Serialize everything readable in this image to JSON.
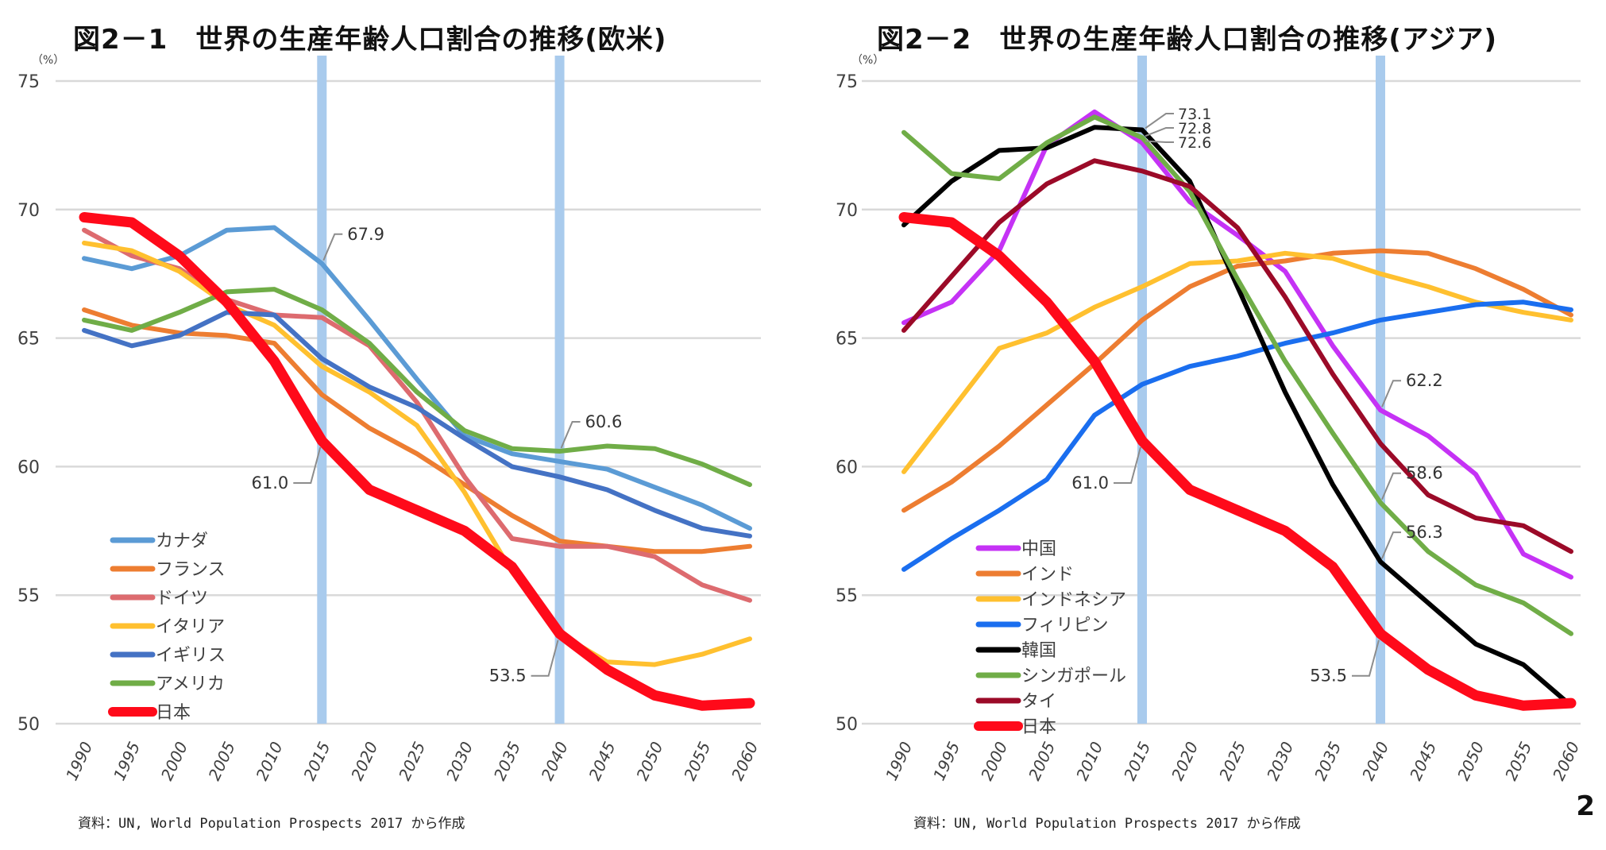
{
  "page_number": "2",
  "colors": {
    "grid": "#d9d9d9",
    "highlight_band": "#a9cbed",
    "label_text": "#404040",
    "leader_line": "#8c8c8c"
  },
  "chart_data": [
    {
      "id": "west",
      "type": "line",
      "title": "図2－1　世界の生産年齢人口割合の推移(欧米)",
      "ylabel": "（%）",
      "xlabel": "",
      "source": "資料：UN, World Population Prospects 2017 から作成",
      "x": [
        1990,
        1995,
        2000,
        2005,
        2010,
        2015,
        2020,
        2025,
        2030,
        2035,
        2040,
        2045,
        2050,
        2055,
        2060
      ],
      "x_tick_labels": [
        "1990",
        "1995",
        "2000",
        "2005",
        "2010",
        "2015",
        "2020",
        "2025",
        "2030",
        "2035",
        "2040",
        "2045",
        "2050",
        "2055",
        "2060"
      ],
      "ylim": [
        50,
        75
      ],
      "y_ticks": [
        50,
        55,
        60,
        65,
        70,
        75
      ],
      "grid": "horizontal",
      "highlight_years": [
        2015,
        2040
      ],
      "legend_position": "bottom-left",
      "series": [
        {
          "name": "カナダ",
          "color": "#5b9bd5",
          "width": "normal",
          "values": [
            68.1,
            67.7,
            68.2,
            69.2,
            69.3,
            67.9,
            65.7,
            63.4,
            61.2,
            60.5,
            60.2,
            59.9,
            59.2,
            58.5,
            57.6
          ]
        },
        {
          "name": "フランス",
          "color": "#ed7d31",
          "width": "normal",
          "values": [
            66.1,
            65.5,
            65.2,
            65.1,
            64.8,
            62.8,
            61.5,
            60.5,
            59.3,
            58.1,
            57.1,
            56.9,
            56.7,
            56.7,
            56.9
          ]
        },
        {
          "name": "ドイツ",
          "color": "#dd6b6f",
          "width": "normal",
          "values": [
            69.2,
            68.2,
            67.7,
            66.5,
            65.9,
            65.8,
            64.7,
            62.5,
            59.6,
            57.2,
            56.9,
            56.9,
            56.5,
            55.4,
            54.8
          ]
        },
        {
          "name": "イタリア",
          "color": "#ffc02f",
          "width": "normal",
          "values": [
            68.7,
            68.4,
            67.6,
            66.3,
            65.5,
            63.9,
            62.9,
            61.6,
            59.0,
            55.9,
            53.5,
            52.4,
            52.3,
            52.7,
            53.3
          ]
        },
        {
          "name": "イギリス",
          "color": "#4472c4",
          "width": "normal",
          "values": [
            65.3,
            64.7,
            65.1,
            66.0,
            65.9,
            64.2,
            63.1,
            62.3,
            61.1,
            60.0,
            59.6,
            59.1,
            58.3,
            57.6,
            57.3
          ]
        },
        {
          "name": "アメリカ",
          "color": "#70ad47",
          "width": "normal",
          "values": [
            65.7,
            65.3,
            66.0,
            66.8,
            66.9,
            66.1,
            64.8,
            62.9,
            61.4,
            60.7,
            60.6,
            60.8,
            60.7,
            60.1,
            59.3
          ]
        },
        {
          "name": "日本",
          "color": "#ff0a1a",
          "width": "thick",
          "values": [
            69.7,
            69.5,
            68.2,
            66.4,
            64.1,
            61.0,
            59.1,
            58.3,
            57.5,
            56.1,
            53.5,
            52.1,
            51.1,
            50.7,
            50.8
          ]
        }
      ],
      "annotations": [
        {
          "text": "67.9",
          "series": "カナダ",
          "year": 2015,
          "side": "right"
        },
        {
          "text": "61.0",
          "series": "日本",
          "year": 2015,
          "side": "left"
        },
        {
          "text": "60.6",
          "series": "アメリカ",
          "year": 2040,
          "side": "right"
        },
        {
          "text": "53.5",
          "series": "日本",
          "year": 2040,
          "side": "left"
        }
      ]
    },
    {
      "id": "asia",
      "type": "line",
      "title": "図2－2　世界の生産年齢人口割合の推移(アジア)",
      "ylabel": "（%）",
      "xlabel": "",
      "source": "資料：UN, World Population Prospects 2017 から作成",
      "x": [
        1990,
        1995,
        2000,
        2005,
        2010,
        2015,
        2020,
        2025,
        2030,
        2035,
        2040,
        2045,
        2050,
        2055,
        2060
      ],
      "x_tick_labels": [
        "1990",
        "1995",
        "2000",
        "2005",
        "2010",
        "2015",
        "2020",
        "2025",
        "2030",
        "2035",
        "2040",
        "2045",
        "2050",
        "2055",
        "2060"
      ],
      "ylim": [
        50,
        75
      ],
      "y_ticks": [
        50,
        55,
        60,
        65,
        70,
        75
      ],
      "grid": "horizontal",
      "highlight_years": [
        2015,
        2040
      ],
      "legend_position": "bottom-left",
      "series": [
        {
          "name": "中国",
          "color": "#c532f5",
          "width": "normal",
          "values": [
            65.6,
            66.4,
            68.4,
            72.5,
            73.8,
            72.6,
            70.3,
            69.0,
            67.6,
            64.7,
            62.2,
            61.2,
            59.7,
            56.6,
            55.7
          ]
        },
        {
          "name": "インド",
          "color": "#ed7d31",
          "width": "normal",
          "values": [
            58.3,
            59.4,
            60.8,
            62.4,
            64.0,
            65.7,
            67.0,
            67.8,
            68.0,
            68.3,
            68.4,
            68.3,
            67.7,
            66.9,
            65.9
          ]
        },
        {
          "name": "インドネシア",
          "color": "#ffc02f",
          "width": "normal",
          "values": [
            59.8,
            62.2,
            64.6,
            65.2,
            66.2,
            67.0,
            67.9,
            68.0,
            68.3,
            68.1,
            67.5,
            67.0,
            66.4,
            66.0,
            65.7
          ]
        },
        {
          "name": "フィリピン",
          "color": "#1a6eef",
          "width": "normal",
          "values": [
            56.0,
            57.2,
            58.3,
            59.5,
            62.0,
            63.2,
            63.9,
            64.3,
            64.8,
            65.2,
            65.7,
            66.0,
            66.3,
            66.4,
            66.1
          ]
        },
        {
          "name": "韓国",
          "color": "#000000",
          "width": "normal",
          "values": [
            69.4,
            71.1,
            72.3,
            72.4,
            73.2,
            73.1,
            71.1,
            67.0,
            62.9,
            59.3,
            56.3,
            54.7,
            53.1,
            52.3,
            50.7
          ]
        },
        {
          "name": "シンガポール",
          "color": "#70ad47",
          "width": "normal",
          "values": [
            73.0,
            71.4,
            71.2,
            72.6,
            73.6,
            72.8,
            70.7,
            67.3,
            64.1,
            61.3,
            58.6,
            56.7,
            55.4,
            54.7,
            53.5
          ]
        },
        {
          "name": "タイ",
          "color": "#9b0a28",
          "width": "normal",
          "values": [
            65.3,
            67.4,
            69.5,
            71.0,
            71.9,
            71.5,
            70.9,
            69.3,
            66.6,
            63.6,
            60.9,
            58.9,
            58.0,
            57.7,
            56.7
          ]
        },
        {
          "name": "日本",
          "color": "#ff0a1a",
          "width": "thick",
          "values": [
            69.7,
            69.5,
            68.2,
            66.4,
            64.1,
            61.0,
            59.1,
            58.3,
            57.5,
            56.1,
            53.5,
            52.1,
            51.1,
            50.7,
            50.8
          ]
        }
      ],
      "annotations": [
        {
          "text": "73.1",
          "series": "韓国",
          "year": 2015,
          "side": "right",
          "stack": 0
        },
        {
          "text": "72.8",
          "series": "シンガポール",
          "year": 2015,
          "side": "right",
          "stack": 1
        },
        {
          "text": "72.6",
          "series": "中国",
          "year": 2015,
          "side": "right",
          "stack": 2
        },
        {
          "text": "61.0",
          "series": "日本",
          "year": 2015,
          "side": "left"
        },
        {
          "text": "62.2",
          "series": "中国",
          "year": 2040,
          "side": "right"
        },
        {
          "text": "58.6",
          "series": "シンガポール",
          "year": 2040,
          "side": "right"
        },
        {
          "text": "56.3",
          "series": "韓国",
          "year": 2040,
          "side": "right"
        },
        {
          "text": "53.5",
          "series": "日本",
          "year": 2040,
          "side": "left"
        }
      ]
    }
  ]
}
